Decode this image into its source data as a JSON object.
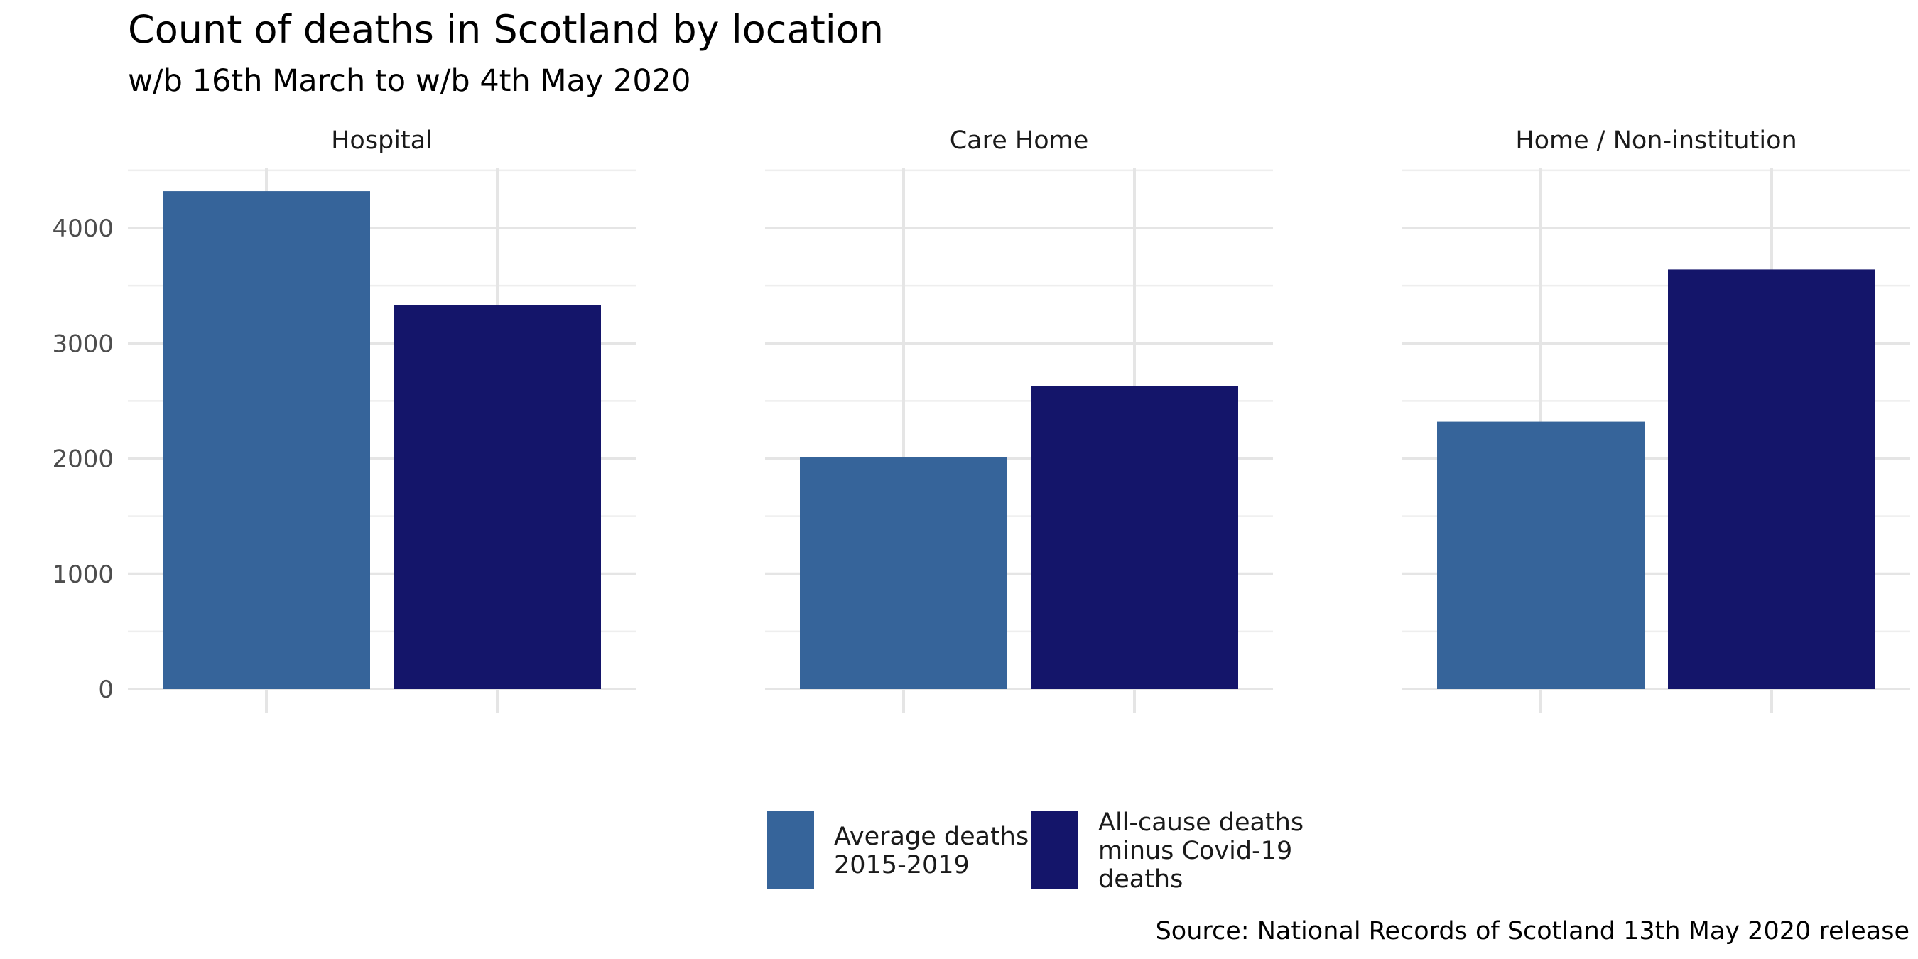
{
  "chart_data": {
    "type": "bar",
    "title": "Count of deaths in Scotland by location",
    "subtitle": "w/b 16th March to w/b 4th May 2020",
    "caption": "Source: National Records of Scotland 13th May 2020 release",
    "panels": [
      "Hospital",
      "Care Home",
      "Home / Non-institution"
    ],
    "series": [
      {
        "name": "Average deaths 2015-2019",
        "name_lines": [
          "Average deaths",
          "2015-2019"
        ],
        "color": "#36649A",
        "values": [
          4320,
          2010,
          2320
        ]
      },
      {
        "name": "All-cause deaths minus Covid-19 deaths",
        "name_lines": [
          "All-cause deaths",
          "minus Covid-19",
          "deaths"
        ],
        "color": "#14156A",
        "values": [
          3330,
          2630,
          3640
        ]
      }
    ],
    "xlabel": "",
    "ylabel": "",
    "ylim": [
      0,
      4550
    ],
    "yticks": [
      0,
      1000,
      2000,
      3000,
      4000
    ],
    "y_tick_labels": [
      "0",
      "1000",
      "2000",
      "3000",
      "4000"
    ],
    "grid": true,
    "legend_position": "bottom"
  }
}
